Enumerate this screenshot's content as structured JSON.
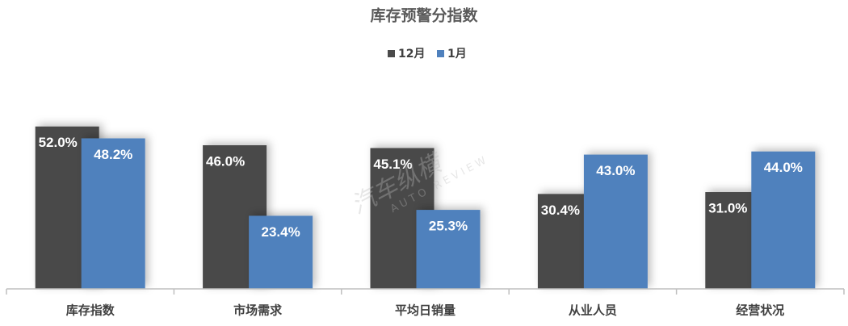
{
  "chart_data": {
    "type": "bar",
    "title": "库存预警分指数",
    "categories": [
      "库存指数",
      "市场需求",
      "平均日销量",
      "从业人员",
      "经营状况"
    ],
    "series": [
      {
        "name": "12月",
        "color": "#4a4a4a",
        "values": [
          52.0,
          46.0,
          45.1,
          30.4,
          31.0
        ],
        "value_labels": [
          "52.0%",
          "46.0%",
          "45.1%",
          "30.4%",
          "31.0%"
        ]
      },
      {
        "name": "1月",
        "color": "#4f81bd",
        "values": [
          48.2,
          23.4,
          25.3,
          43.0,
          44.0
        ],
        "value_labels": [
          "48.2%",
          "23.4%",
          "25.3%",
          "43.0%",
          "44.0%"
        ]
      }
    ],
    "legend": "top",
    "watermark": [
      "汽车纵横",
      "AUTO REVIEW"
    ]
  }
}
